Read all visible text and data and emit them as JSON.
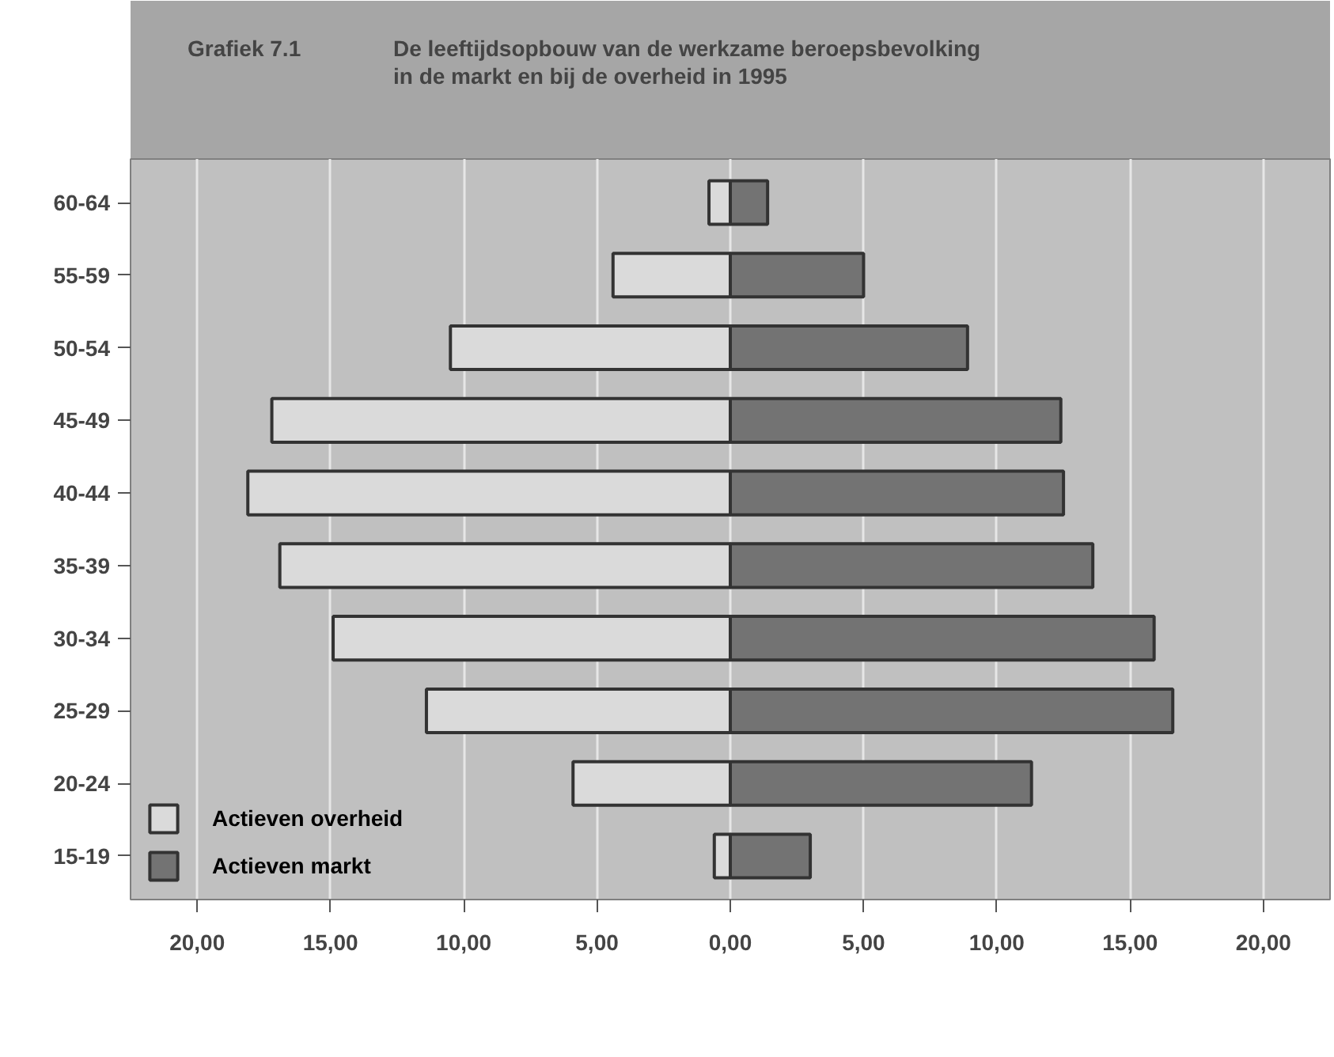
{
  "chart_data": {
    "type": "bar",
    "orientation": "horizontal",
    "title": "Grafiek 7.1",
    "subtitle": "De leeftijdsopbouw van de werkzame beroepsbevolking\nin de markt en bij de overheid in 1995",
    "categories": [
      "60-64",
      "55-59",
      "50-54",
      "45-49",
      "40-44",
      "35-39",
      "30-34",
      "25-29",
      "20-24",
      "15-19"
    ],
    "series": [
      {
        "name": "Actieven overheid",
        "color": "#dadada",
        "values": [
          -0.8,
          -4.4,
          -10.5,
          -17.2,
          -18.1,
          -16.9,
          -14.9,
          -11.4,
          -5.9,
          -0.6
        ]
      },
      {
        "name": "Actieven markt",
        "color": "#737373",
        "values": [
          1.4,
          5.0,
          8.9,
          12.4,
          12.5,
          13.6,
          15.9,
          16.6,
          11.3,
          3.0
        ]
      }
    ],
    "xlim": [
      -22.5,
      22.5
    ],
    "xticks": [
      {
        "value": -20,
        "label": "20,00"
      },
      {
        "value": -15,
        "label": "15,00"
      },
      {
        "value": -10,
        "label": "10,00"
      },
      {
        "value": -5,
        "label": "5,00"
      },
      {
        "value": 0,
        "label": "0,00"
      },
      {
        "value": 5,
        "label": "5,00"
      },
      {
        "value": 10,
        "label": "10,00"
      },
      {
        "value": 15,
        "label": "15,00"
      },
      {
        "value": 20,
        "label": "20,00"
      }
    ],
    "stacked": true,
    "grid": "x",
    "legend": "bottom left"
  }
}
